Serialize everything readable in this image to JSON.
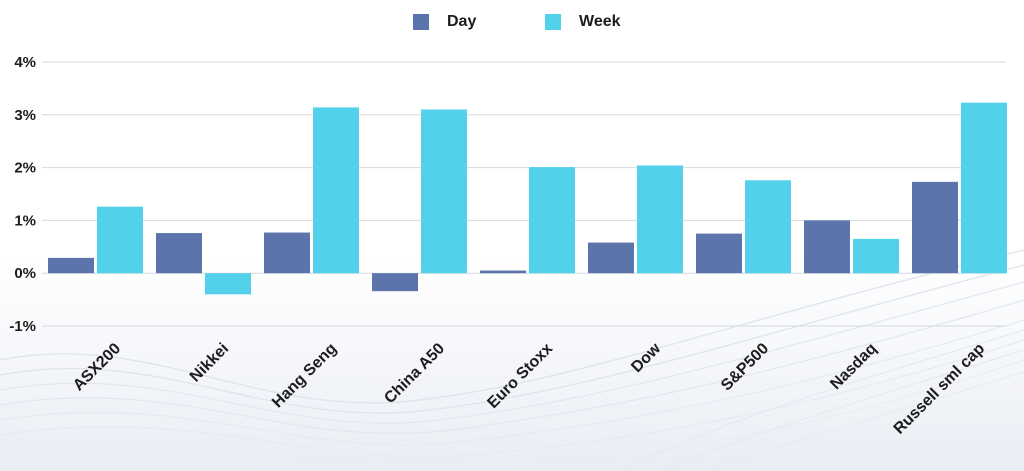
{
  "legend": {
    "day_label": "Day",
    "week_label": "Week"
  },
  "colors": {
    "day": "#5b74ab",
    "week": "#54d1ea",
    "grid": "#d6d9de",
    "text": "#1c1c1c"
  },
  "chart_data": {
    "type": "bar",
    "categories": [
      "ASX200",
      "Nikkei",
      "Hang Seng",
      "China A50",
      "Euro Stoxx",
      "Dow",
      "S&P500",
      "Nasdaq",
      "Russell sml cap"
    ],
    "series": [
      {
        "name": "Day",
        "values": [
          0.29,
          0.76,
          0.77,
          -0.34,
          0.05,
          0.58,
          0.75,
          1.0,
          1.73
        ]
      },
      {
        "name": "Week",
        "values": [
          1.26,
          -0.4,
          3.14,
          3.1,
          2.01,
          2.04,
          1.76,
          0.65,
          3.23
        ]
      }
    ],
    "yticks": [
      4,
      3,
      2,
      1,
      0,
      -1
    ],
    "ytick_labels": [
      "4%",
      "3%",
      "2%",
      "1%",
      "0%",
      "-1%"
    ],
    "ylim": [
      -1,
      4
    ],
    "grid": true,
    "legend_position": "top-center"
  }
}
